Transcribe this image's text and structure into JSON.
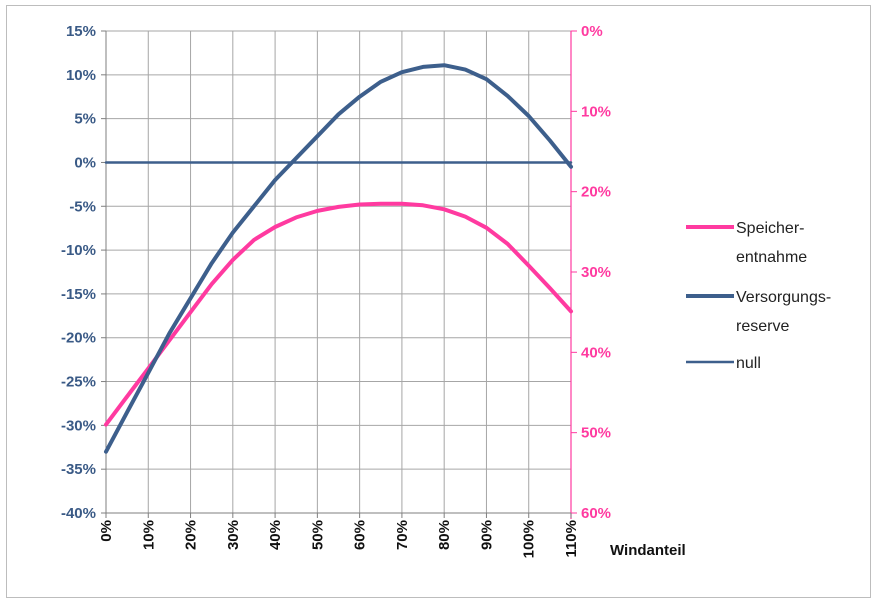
{
  "chart_data": {
    "type": "line",
    "xlabel": "Windanteil",
    "x": [
      0,
      5,
      10,
      15,
      20,
      25,
      30,
      35,
      40,
      45,
      50,
      55,
      60,
      65,
      70,
      75,
      80,
      85,
      90,
      95,
      100,
      105,
      110
    ],
    "x_ticks": [
      "0%",
      "10%",
      "20%",
      "30%",
      "40%",
      "50%",
      "60%",
      "70%",
      "80%",
      "90%",
      "100%",
      "110%"
    ],
    "y_left": {
      "ylim": [
        -40,
        15
      ],
      "ticks": [
        "15%",
        "10%",
        "5%",
        "0%",
        "-5%",
        "-10%",
        "-15%",
        "-20%",
        "-25%",
        "-30%",
        "-35%",
        "-40%"
      ]
    },
    "y_right": {
      "ylim": [
        60,
        0
      ],
      "inverted": true,
      "ticks": [
        "0%",
        "10%",
        "20%",
        "30%",
        "40%",
        "50%",
        "60%"
      ]
    },
    "grid": true,
    "legend_position": "right",
    "series": [
      {
        "name": "Speicher-entnahme",
        "legend_lines": [
          "Speicher-",
          "entnahme"
        ],
        "axis": "right",
        "color": "#ff3aa0",
        "values": [
          49.0,
          45.5,
          42.0,
          38.5,
          35.0,
          31.5,
          28.5,
          26.0,
          24.4,
          23.2,
          22.4,
          21.9,
          21.6,
          21.5,
          21.5,
          21.7,
          22.2,
          23.1,
          24.5,
          26.5,
          29.2,
          32.0,
          34.9
        ]
      },
      {
        "name": "Versorgungs-reserve",
        "legend_lines": [
          "Versorgungs-",
          "reserve"
        ],
        "axis": "left",
        "color": "#3d5f8c",
        "values": [
          -33.0,
          -28.5,
          -24.0,
          -19.5,
          -15.5,
          -11.5,
          -8.0,
          -5.0,
          -2.0,
          0.5,
          3.0,
          5.5,
          7.5,
          9.2,
          10.3,
          10.9,
          11.1,
          10.6,
          9.5,
          7.6,
          5.3,
          2.5,
          -0.5
        ]
      },
      {
        "name": "null",
        "legend_lines": [
          "null"
        ],
        "axis": "left",
        "color": "#3d5f8c",
        "values": [
          0,
          0,
          0,
          0,
          0,
          0,
          0,
          0,
          0,
          0,
          0,
          0,
          0,
          0,
          0,
          0,
          0,
          0,
          0,
          0,
          0,
          0,
          0
        ]
      }
    ]
  }
}
